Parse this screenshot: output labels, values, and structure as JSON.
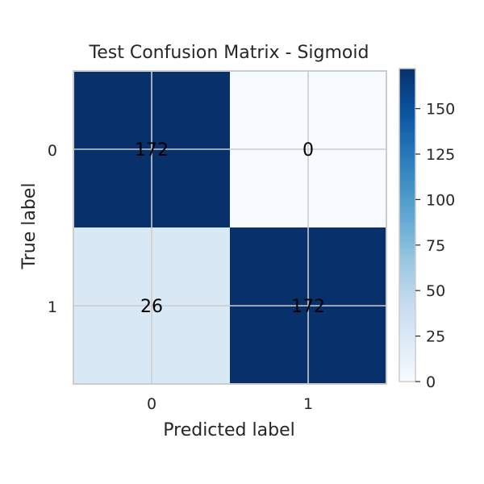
{
  "chart_data": {
    "type": "heatmap",
    "title": "Test Confusion Matrix - Sigmoid",
    "xlabel": "Predicted label",
    "ylabel": "True label",
    "x_categories": [
      "0",
      "1"
    ],
    "y_categories": [
      "0",
      "1"
    ],
    "matrix": [
      [
        172,
        0
      ],
      [
        26,
        172
      ]
    ],
    "colormap": "Blues",
    "color_range": [
      0,
      172
    ],
    "colorbar_ticks": [
      0,
      25,
      50,
      75,
      100,
      125,
      150
    ],
    "grid": true,
    "colors": {
      "low": "#f7fbff",
      "high": "#08306b",
      "grid": "#cccccc",
      "frame": "#cccccc",
      "text": "#262626"
    }
  }
}
